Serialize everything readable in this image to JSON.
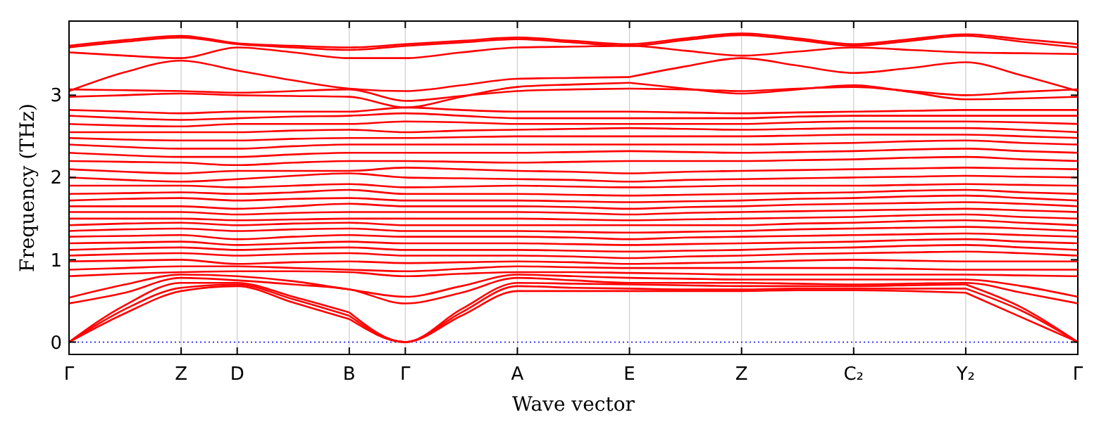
{
  "chart_data": {
    "type": "line",
    "xlabel": "Wave vector",
    "ylabel": "Frequency (THz)",
    "categories": [
      "Γ",
      null,
      "Z",
      "D",
      null,
      "B",
      "Γ",
      null,
      "A",
      null,
      "E",
      null,
      "Z",
      null,
      "C₂",
      null,
      "Y₂",
      null,
      "Γ"
    ],
    "ylim": [
      -0.15,
      3.9
    ],
    "yticks": [
      0,
      1,
      2,
      3
    ],
    "grid": "x",
    "line_style": "solid",
    "marker": "none",
    "ref_lines": [
      {
        "axis": "y",
        "value": 0,
        "color": "#0000ff",
        "line_style": "dotted"
      }
    ],
    "series": [
      {
        "color": "#ff0000",
        "values": [
          0,
          0.35,
          0.62,
          0.68,
          0.48,
          0.28,
          null,
          null,
          null,
          null,
          null,
          null,
          null,
          null,
          null,
          null,
          null,
          null,
          null
        ]
      },
      {
        "color": "#ff0000",
        "values": [
          null,
          null,
          null,
          null,
          null,
          0.28,
          0,
          0.32,
          0.62,
          0.62,
          0.62,
          null,
          null,
          null,
          null,
          null,
          null,
          null,
          null
        ]
      },
      {
        "color": "#ff0000",
        "values": [
          null,
          null,
          null,
          null,
          null,
          null,
          null,
          null,
          null,
          null,
          0.62,
          0.62,
          0.62,
          0.63,
          0.63,
          0.62,
          0.6,
          null,
          null
        ]
      },
      {
        "color": "#ff0000",
        "values": [
          null,
          null,
          null,
          null,
          null,
          null,
          null,
          null,
          null,
          null,
          null,
          null,
          null,
          null,
          null,
          null,
          0.6,
          0.3,
          0
        ]
      },
      {
        "color": "#ff0000",
        "values": [
          0,
          0.4,
          0.66,
          0.7,
          0.52,
          0.32,
          null,
          null,
          null,
          null,
          null,
          null,
          null,
          null,
          null,
          null,
          null,
          null,
          null
        ]
      },
      {
        "color": "#ff0000",
        "values": [
          null,
          null,
          null,
          null,
          null,
          0.32,
          0,
          0.36,
          0.68,
          0.66,
          0.65,
          null,
          null,
          null,
          null,
          null,
          null,
          null,
          null
        ]
      },
      {
        "color": "#ff0000",
        "values": [
          null,
          null,
          null,
          null,
          null,
          null,
          null,
          null,
          null,
          null,
          0.65,
          0.64,
          0.64,
          0.65,
          0.65,
          0.65,
          0.65,
          null,
          null
        ]
      },
      {
        "color": "#ff0000",
        "values": [
          null,
          null,
          null,
          null,
          null,
          null,
          null,
          null,
          null,
          null,
          null,
          null,
          null,
          null,
          null,
          null,
          0.65,
          0.38,
          0
        ]
      },
      {
        "color": "#ff0000",
        "values": [
          0,
          0.45,
          0.72,
          0.72,
          0.55,
          0.36,
          null,
          null,
          null,
          null,
          null,
          null,
          null,
          null,
          null,
          null,
          null,
          null,
          null
        ]
      },
      {
        "color": "#ff0000",
        "values": [
          null,
          null,
          null,
          null,
          null,
          0.36,
          0,
          0.4,
          0.72,
          0.71,
          0.7,
          null,
          null,
          null,
          null,
          null,
          null,
          null,
          null
        ]
      },
      {
        "color": "#ff0000",
        "values": [
          null,
          null,
          null,
          null,
          null,
          null,
          null,
          null,
          null,
          null,
          0.7,
          0.69,
          0.68,
          0.68,
          0.68,
          0.69,
          0.7,
          null,
          null
        ]
      },
      {
        "color": "#ff0000",
        "values": [
          null,
          null,
          null,
          null,
          null,
          null,
          null,
          null,
          null,
          null,
          null,
          null,
          null,
          null,
          null,
          null,
          0.7,
          0.42,
          0
        ]
      },
      {
        "color": "#ff0000",
        "values": [
          0.47,
          0.6,
          0.78,
          0.75,
          0.7,
          0.64,
          0.47,
          0.6,
          0.78,
          0.75,
          0.72,
          0.72,
          0.72,
          0.71,
          0.7,
          0.71,
          0.72,
          0.6,
          0.47
        ]
      },
      {
        "color": "#ff0000",
        "values": [
          0.54,
          0.7,
          0.82,
          0.8,
          0.74,
          0.64,
          0.55,
          0.68,
          0.82,
          0.8,
          0.78,
          0.77,
          0.76,
          0.76,
          0.76,
          0.76,
          0.76,
          0.68,
          0.55
        ]
      },
      {
        "color": "#ff0000",
        "values": [
          0.8,
          0.83,
          0.85,
          0.86,
          0.86,
          0.85,
          0.8,
          0.83,
          0.85,
          0.85,
          0.84,
          0.83,
          0.82,
          0.82,
          0.82,
          0.82,
          0.82,
          0.81,
          0.8
        ]
      },
      {
        "color": "#ff0000",
        "values": [
          0.88,
          0.9,
          0.92,
          0.92,
          0.9,
          0.88,
          0.86,
          0.89,
          0.92,
          0.91,
          0.9,
          0.9,
          0.9,
          0.9,
          0.9,
          0.89,
          0.88,
          0.88,
          0.88
        ]
      },
      {
        "color": "#ff0000",
        "values": [
          0.98,
          0.99,
          1.0,
          0.95,
          0.97,
          0.98,
          0.96,
          0.97,
          0.98,
          0.97,
          0.95,
          0.96,
          0.97,
          0.99,
          1.0,
          0.99,
          0.98,
          0.98,
          0.98
        ]
      },
      {
        "color": "#ff0000",
        "values": [
          1.05,
          1.07,
          1.08,
          1.05,
          1.07,
          1.08,
          1.05,
          1.05,
          1.05,
          1.04,
          1.02,
          1.04,
          1.05,
          1.07,
          1.08,
          1.09,
          1.1,
          1.08,
          1.05
        ]
      },
      {
        "color": "#ff0000",
        "values": [
          1.12,
          1.14,
          1.15,
          1.12,
          1.14,
          1.15,
          1.12,
          1.12,
          1.12,
          1.11,
          1.1,
          1.11,
          1.12,
          1.14,
          1.15,
          1.17,
          1.18,
          1.15,
          1.12
        ]
      },
      {
        "color": "#ff0000",
        "values": [
          1.2,
          1.21,
          1.22,
          1.18,
          1.2,
          1.22,
          1.2,
          1.2,
          1.2,
          1.19,
          1.18,
          1.19,
          1.2,
          1.21,
          1.22,
          1.24,
          1.25,
          1.22,
          1.2
        ]
      },
      {
        "color": "#ff0000",
        "values": [
          1.28,
          1.29,
          1.3,
          1.25,
          1.28,
          1.3,
          1.28,
          1.28,
          1.28,
          1.27,
          1.25,
          1.27,
          1.28,
          1.29,
          1.3,
          1.31,
          1.32,
          1.3,
          1.28
        ]
      },
      {
        "color": "#ff0000",
        "values": [
          1.35,
          1.37,
          1.38,
          1.35,
          1.37,
          1.38,
          1.35,
          1.35,
          1.35,
          1.34,
          1.33,
          1.34,
          1.35,
          1.37,
          1.38,
          1.39,
          1.4,
          1.38,
          1.35
        ]
      },
      {
        "color": "#ff0000",
        "values": [
          1.42,
          1.44,
          1.45,
          1.42,
          1.44,
          1.45,
          1.42,
          1.42,
          1.42,
          1.42,
          1.42,
          1.42,
          1.42,
          1.44,
          1.45,
          1.47,
          1.48,
          1.45,
          1.42
        ]
      },
      {
        "color": "#ff0000",
        "values": [
          1.5,
          1.5,
          1.5,
          1.48,
          1.49,
          1.5,
          1.5,
          1.5,
          1.5,
          1.49,
          1.48,
          1.49,
          1.5,
          1.51,
          1.52,
          1.54,
          1.55,
          1.52,
          1.5
        ]
      },
      {
        "color": "#ff0000",
        "values": [
          1.58,
          1.58,
          1.58,
          1.55,
          1.57,
          1.58,
          1.58,
          1.58,
          1.58,
          1.57,
          1.55,
          1.57,
          1.58,
          1.59,
          1.6,
          1.61,
          1.62,
          1.6,
          1.58
        ]
      },
      {
        "color": "#ff0000",
        "values": [
          1.65,
          1.65,
          1.65,
          1.62,
          1.65,
          1.68,
          1.65,
          1.65,
          1.65,
          1.64,
          1.62,
          1.64,
          1.65,
          1.67,
          1.68,
          1.69,
          1.7,
          1.68,
          1.65
        ]
      },
      {
        "color": "#ff0000",
        "values": [
          1.72,
          1.74,
          1.75,
          1.72,
          1.74,
          1.75,
          1.72,
          1.72,
          1.72,
          1.71,
          1.7,
          1.71,
          1.72,
          1.74,
          1.75,
          1.77,
          1.78,
          1.75,
          1.72
        ]
      },
      {
        "color": "#ff0000",
        "values": [
          1.8,
          1.81,
          1.82,
          1.8,
          1.82,
          1.85,
          1.8,
          1.8,
          1.8,
          1.79,
          1.78,
          1.79,
          1.8,
          1.81,
          1.82,
          1.84,
          1.85,
          1.82,
          1.8
        ]
      },
      {
        "color": "#ff0000",
        "values": [
          1.9,
          1.9,
          1.9,
          1.88,
          1.9,
          1.92,
          1.88,
          1.89,
          1.9,
          1.89,
          1.88,
          1.89,
          1.9,
          1.9,
          1.9,
          1.91,
          1.92,
          1.91,
          1.9
        ]
      },
      {
        "color": "#ff0000",
        "values": [
          2.0,
          1.97,
          1.95,
          1.98,
          2.02,
          2.05,
          2.0,
          1.99,
          1.98,
          1.97,
          1.95,
          1.97,
          1.98,
          1.99,
          2.0,
          2.01,
          2.02,
          2.01,
          2.0
        ]
      },
      {
        "color": "#ff0000",
        "values": [
          2.1,
          2.07,
          2.05,
          2.08,
          2.08,
          2.08,
          2.12,
          2.1,
          2.08,
          2.07,
          2.05,
          2.07,
          2.08,
          2.09,
          2.1,
          2.11,
          2.12,
          2.11,
          2.1
        ]
      },
      {
        "color": "#ff0000",
        "values": [
          2.2,
          2.19,
          2.18,
          2.15,
          2.18,
          2.2,
          2.2,
          2.19,
          2.18,
          2.19,
          2.2,
          2.2,
          2.2,
          2.21,
          2.22,
          2.24,
          2.25,
          2.22,
          2.2
        ]
      },
      {
        "color": "#ff0000",
        "values": [
          2.3,
          2.27,
          2.25,
          2.25,
          2.28,
          2.3,
          2.3,
          2.3,
          2.3,
          2.31,
          2.32,
          2.31,
          2.3,
          2.31,
          2.32,
          2.34,
          2.35,
          2.32,
          2.3
        ]
      },
      {
        "color": "#ff0000",
        "values": [
          2.4,
          2.37,
          2.35,
          2.35,
          2.38,
          2.4,
          2.4,
          2.4,
          2.4,
          2.4,
          2.4,
          2.4,
          2.4,
          2.41,
          2.42,
          2.44,
          2.45,
          2.42,
          2.4
        ]
      },
      {
        "color": "#ff0000",
        "values": [
          2.48,
          2.46,
          2.45,
          2.45,
          2.47,
          2.48,
          2.48,
          2.49,
          2.5,
          2.5,
          2.5,
          2.5,
          2.5,
          2.51,
          2.52,
          2.52,
          2.52,
          2.5,
          2.48
        ]
      },
      {
        "color": "#ff0000",
        "values": [
          2.55,
          2.55,
          2.55,
          2.55,
          2.57,
          2.58,
          2.55,
          2.57,
          2.58,
          2.59,
          2.6,
          2.59,
          2.58,
          2.59,
          2.6,
          2.6,
          2.6,
          2.58,
          2.55
        ]
      },
      {
        "color": "#ff0000",
        "values": [
          2.65,
          2.63,
          2.62,
          2.65,
          2.65,
          2.65,
          2.68,
          2.67,
          2.65,
          2.65,
          2.65,
          2.65,
          2.65,
          2.67,
          2.68,
          2.68,
          2.68,
          2.67,
          2.65
        ]
      },
      {
        "color": "#ff0000",
        "values": [
          2.75,
          2.72,
          2.7,
          2.72,
          2.74,
          2.75,
          2.78,
          2.75,
          2.72,
          2.72,
          2.72,
          2.72,
          2.72,
          2.74,
          2.75,
          2.75,
          2.75,
          2.75,
          2.75
        ]
      },
      {
        "color": "#ff0000",
        "values": [
          2.82,
          2.8,
          2.78,
          2.8,
          2.8,
          2.8,
          2.85,
          2.82,
          2.8,
          2.8,
          2.8,
          2.79,
          2.78,
          2.79,
          2.8,
          2.81,
          2.82,
          2.82,
          2.82
        ]
      },
      {
        "color": "#ff0000",
        "values": [
          2.98,
          3.0,
          3.02,
          3.0,
          2.99,
          2.98,
          2.85,
          2.98,
          3.1,
          3.13,
          3.15,
          null,
          null,
          null,
          null,
          null,
          null,
          null,
          null
        ]
      },
      {
        "color": "#ff0000",
        "values": [
          null,
          null,
          null,
          null,
          null,
          null,
          null,
          null,
          null,
          null,
          3.15,
          3.08,
          3.02,
          3.07,
          3.12,
          3.04,
          2.95,
          2.96,
          2.98
        ]
      },
      {
        "color": "#ff0000",
        "values": [
          3.07,
          3.06,
          3.05,
          3.03,
          3.05,
          3.07,
          2.93,
          2.99,
          3.05,
          3.07,
          3.08,
          null,
          null,
          null,
          null,
          null,
          null,
          null,
          null
        ]
      },
      {
        "color": "#ff0000",
        "values": [
          null,
          null,
          null,
          null,
          null,
          null,
          null,
          null,
          null,
          null,
          3.08,
          3.07,
          3.05,
          3.08,
          3.1,
          3.05,
          3.0,
          3.04,
          3.07
        ]
      },
      {
        "color": "#ff0000",
        "values": [
          3.05,
          3.28,
          3.42,
          3.3,
          3.18,
          3.08,
          3.05,
          3.12,
          3.2,
          3.21,
          3.22,
          null,
          null,
          null,
          null,
          null,
          null,
          null,
          null
        ]
      },
      {
        "color": "#ff0000",
        "values": [
          null,
          null,
          null,
          null,
          null,
          null,
          null,
          null,
          null,
          null,
          3.22,
          3.35,
          3.45,
          3.36,
          3.27,
          3.33,
          3.4,
          3.24,
          3.05
        ]
      },
      {
        "color": "#ff0000",
        "values": [
          3.52,
          3.48,
          3.45,
          3.58,
          3.52,
          3.45,
          3.45,
          3.52,
          3.58,
          3.59,
          3.6,
          3.54,
          3.48,
          3.53,
          3.58,
          3.55,
          3.52,
          3.51,
          3.5
        ]
      },
      {
        "color": "#ff0000",
        "values": [
          3.58,
          3.65,
          3.7,
          3.62,
          3.58,
          3.55,
          3.6,
          3.64,
          3.68,
          3.64,
          3.6,
          3.67,
          3.73,
          3.67,
          3.6,
          3.66,
          3.72,
          3.65,
          3.58
        ]
      },
      {
        "color": "#ff0000",
        "values": [
          3.6,
          3.67,
          3.72,
          3.63,
          3.6,
          3.58,
          3.62,
          3.66,
          3.7,
          3.66,
          3.62,
          3.69,
          3.75,
          3.69,
          3.62,
          3.68,
          3.74,
          3.68,
          3.62
        ]
      }
    ]
  }
}
